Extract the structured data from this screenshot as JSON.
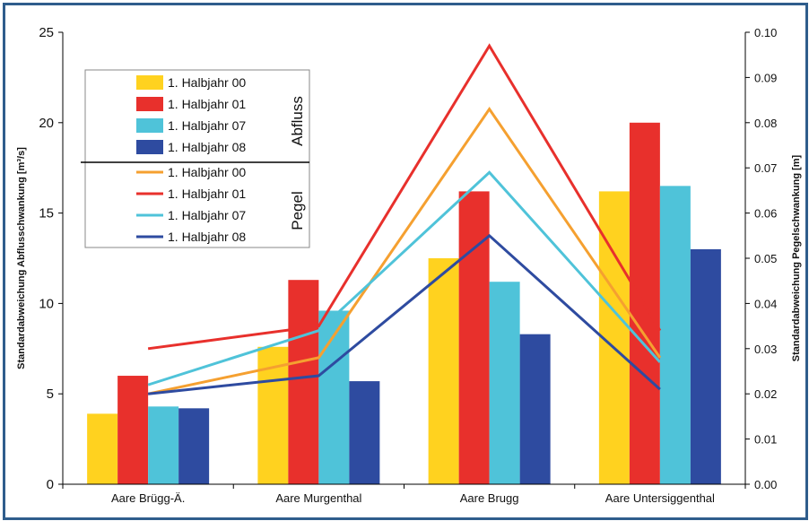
{
  "chart_data": {
    "type": "bar",
    "categories": [
      "Aare Brügg-Ä.",
      "Aare Murgenthal",
      "Aare Brugg",
      "Aare Untersiggenthal"
    ],
    "ylabel_left": "Standardabweichung Abflusschwankung [m³/s]",
    "ylabel_right": "Standardabweichung Pegelschwankung [m]",
    "ylim_left": [
      0,
      25
    ],
    "ylim_right": [
      0,
      0.1
    ],
    "yticks_left": [
      "0",
      "5",
      "10",
      "15",
      "20",
      "25"
    ],
    "yticks_right": [
      "0.00",
      "0.01",
      "0.02",
      "0.03",
      "0.04",
      "0.05",
      "0.06",
      "0.07",
      "0.08",
      "0.09",
      "0.10"
    ],
    "grid": false,
    "legend_position": "top-left",
    "bar_group_label": "Abfluss",
    "line_group_label": "Pegel",
    "bar_series": [
      {
        "name": "1. Halbjahr 00",
        "color": "#ffd21f",
        "values": [
          3.9,
          7.6,
          12.5,
          16.2
        ]
      },
      {
        "name": "1. Halbjahr 01",
        "color": "#e8302c",
        "values": [
          6.0,
          11.3,
          16.2,
          20.0
        ]
      },
      {
        "name": "1. Halbjahr 07",
        "color": "#4fc3d9",
        "values": [
          4.3,
          9.6,
          11.2,
          16.5
        ]
      },
      {
        "name": "1. Halbjahr 08",
        "color": "#2e4ba0",
        "values": [
          4.2,
          5.7,
          8.3,
          13.0
        ]
      }
    ],
    "line_series": [
      {
        "name": "1. Halbjahr 00",
        "color": "#f5a030",
        "values": [
          0.02,
          0.028,
          0.083,
          0.028
        ]
      },
      {
        "name": "1. Halbjahr 01",
        "color": "#e8302c",
        "values": [
          0.03,
          0.035,
          0.097,
          0.034
        ]
      },
      {
        "name": "1. Halbjahr 07",
        "color": "#4fc3d9",
        "values": [
          0.022,
          0.034,
          0.069,
          0.027
        ]
      },
      {
        "name": "1. Halbjahr 08",
        "color": "#2e4ba0",
        "values": [
          0.02,
          0.024,
          0.055,
          0.021
        ]
      }
    ]
  }
}
